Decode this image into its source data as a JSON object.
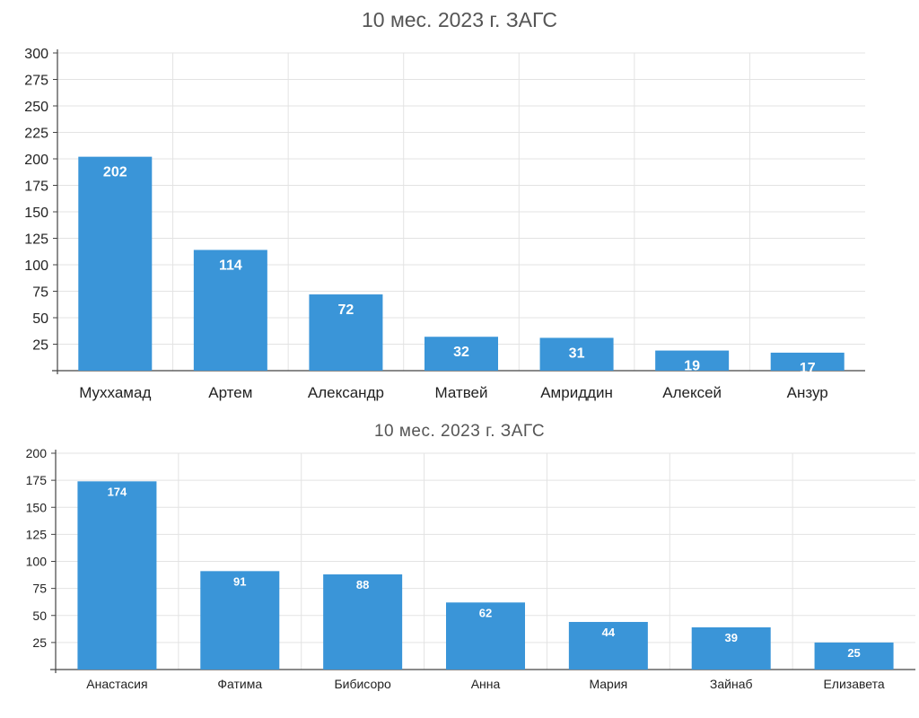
{
  "chart_data": [
    {
      "type": "bar",
      "title": "10 мес. 2023 г. ЗАГС",
      "categories": [
        "Муххамад",
        "Артем",
        "Александр",
        "Матвей",
        "Амриддин",
        "Алексей",
        "Анзур"
      ],
      "values": [
        202,
        114,
        72,
        32,
        31,
        19,
        17
      ],
      "ylim": [
        0,
        300
      ],
      "yticks": [
        25,
        50,
        75,
        100,
        125,
        150,
        175,
        200,
        225,
        250,
        275,
        300
      ],
      "xlabel": "",
      "ylabel": "",
      "grid": true,
      "bar_color": "#3a95d8",
      "label_color": "#ffffff"
    },
    {
      "type": "bar",
      "title": "10 мес. 2023 г. ЗАГС",
      "categories": [
        "Анастасия",
        "Фатима",
        "Бибисоро",
        "Анна",
        "Мария",
        "Зайнаб",
        "Елизавета"
      ],
      "values": [
        174,
        91,
        88,
        62,
        44,
        39,
        25
      ],
      "ylim": [
        0,
        200
      ],
      "yticks": [
        25,
        50,
        75,
        100,
        125,
        150,
        175,
        200
      ],
      "xlabel": "",
      "ylabel": "",
      "grid": true,
      "bar_color": "#3a95d8",
      "label_color": "#ffffff"
    }
  ]
}
